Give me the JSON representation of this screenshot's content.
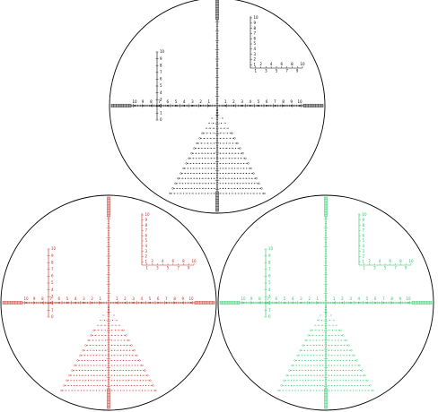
{
  "reticles": [
    {
      "name": "black",
      "color": "#000000",
      "ring_color": "#000000",
      "corner_y_labels": [
        "10",
        "9",
        "8",
        "7",
        "6",
        "5",
        "4",
        "3",
        "2",
        "1"
      ],
      "corner_x_labels": [
        "1",
        "2",
        "3",
        "4",
        "5",
        "6",
        "7",
        "8",
        "9",
        "10"
      ],
      "left_y_labels": [
        "10",
        "9",
        "8",
        "7",
        "6",
        "5",
        "4",
        "3",
        "2",
        "1",
        "0"
      ],
      "h_labels": [
        "10",
        "9",
        "8",
        "7",
        "6",
        "5",
        "4",
        "3",
        "2",
        "1",
        "1",
        "2",
        "3",
        "4",
        "5",
        "6",
        "7",
        "8",
        "9",
        "10"
      ],
      "tree_rows": 16
    },
    {
      "name": "red",
      "color": "#c0281e",
      "ring_color": "#000000",
      "corner_y_labels": [
        "10",
        "9",
        "8",
        "7",
        "6",
        "5",
        "4",
        "3",
        "2",
        "1"
      ],
      "corner_x_labels": [
        "1",
        "2",
        "3",
        "4",
        "5",
        "6",
        "7",
        "8",
        "9",
        "10"
      ],
      "left_y_labels": [
        "10",
        "9",
        "8",
        "7",
        "6",
        "5",
        "4",
        "3",
        "2",
        "1",
        "0"
      ],
      "h_labels": [
        "10",
        "9",
        "8",
        "7",
        "6",
        "5",
        "4",
        "3",
        "2",
        "1",
        "1",
        "2",
        "3",
        "4",
        "5",
        "6",
        "7",
        "8",
        "9",
        "10"
      ],
      "tree_rows": 16
    },
    {
      "name": "green",
      "color": "#22c55e",
      "ring_color": "#000000",
      "corner_y_labels": [
        "10",
        "9",
        "8",
        "7",
        "6",
        "5",
        "4",
        "3",
        "2",
        "1"
      ],
      "corner_x_labels": [
        "1",
        "2",
        "3",
        "4",
        "5",
        "6",
        "7",
        "8",
        "9",
        "10"
      ],
      "left_y_labels": [
        "10",
        "9",
        "8",
        "7",
        "6",
        "5",
        "4",
        "3",
        "2",
        "1",
        "0"
      ],
      "h_labels": [
        "10",
        "9",
        "8",
        "7",
        "6",
        "5",
        "4",
        "3",
        "2",
        "1",
        "1",
        "2",
        "3",
        "4",
        "5",
        "6",
        "7",
        "8",
        "9",
        "10"
      ],
      "tree_rows": 16
    }
  ]
}
